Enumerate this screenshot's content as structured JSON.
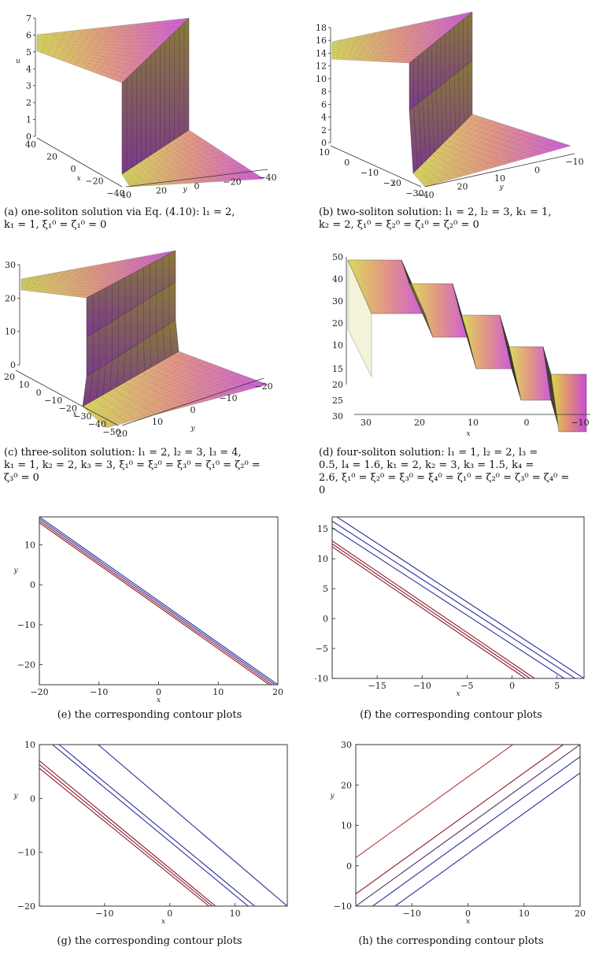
{
  "figure": {
    "panels": [
      {
        "id": "a",
        "caption": "(a) one-soliton solution via Eq. (4.10): l₁ = 2,\nk₁ = 1, ξ₁⁰ = ζ₁⁰ = 0",
        "u_axis": {
          "label": "u",
          "ticks": [
            "7",
            "6",
            "5",
            "4",
            "3",
            "2",
            "1",
            "0"
          ]
        },
        "x_axis": {
          "label": "x",
          "ticks": [
            "40",
            "20",
            "0",
            "−20",
            "−40"
          ]
        },
        "y_axis": {
          "label": "y",
          "ticks": [
            "40",
            "20",
            "0",
            "−20",
            "−40"
          ]
        },
        "steps": 1,
        "u_max": 7
      },
      {
        "id": "b",
        "caption": "(b) two-soliton solution: l₁ = 2, l₂ = 3, k₁ = 1,\nk₂ = 2, ξ₁⁰ = ξ₂⁰ = ζ₁⁰ = ζ₂⁰ = 0",
        "u_axis": {
          "label": "u",
          "ticks": [
            "18",
            "16",
            "14",
            "12",
            "10",
            "8",
            "6",
            "4",
            "2",
            "0"
          ]
        },
        "x_axis": {
          "label": "x",
          "ticks": [
            "10",
            "0",
            "−10",
            "−20",
            "−30"
          ]
        },
        "y_axis": {
          "label": "y",
          "ticks": [
            "−40",
            "20",
            "10",
            "0",
            "−10"
          ]
        },
        "steps": 2,
        "u_max": 18
      },
      {
        "id": "c",
        "caption": "(c) three-soliton solution: l₁ = 2, l₂ = 3, l₃ = 4,\nk₁ = 1, k₂ = 2, k₃ = 3, ξ₁⁰ = ξ₂⁰ = ξ₃⁰ = ζ₁⁰ = ζ₂⁰ =\nζ₃⁰ = 0",
        "u_axis": {
          "label": "",
          "ticks": [
            "30",
            "20",
            "10",
            "0"
          ]
        },
        "x_axis": {
          "label": "x",
          "ticks": [
            "20",
            "10",
            "0",
            "−10",
            "−20",
            "−30",
            "−40",
            "−50"
          ]
        },
        "y_axis": {
          "label": "y",
          "ticks": [
            "20",
            "10",
            "0",
            "−10",
            "−20"
          ]
        },
        "steps": 3,
        "u_max": 33
      },
      {
        "id": "d",
        "caption": "(d) four-soliton solution: l₁ = 1, l₂ = 2, l₃ =\n0.5, l₄ = 1.6, k₁ = 2, k₂ = 3, k₃ = 1.5, k₄ =\n2.6, ξ₁⁰ = ξ₂⁰ = ξ₃⁰ = ξ₄⁰ = ζ₁⁰ = ζ₂⁰ = ζ₃⁰ = ζ₄⁰ =\n0",
        "u_axis": {
          "label": "",
          "ticks": [
            "50",
            "40",
            "30",
            "20",
            "10"
          ]
        },
        "x_axis": {
          "label": "x",
          "ticks": [
            "30",
            "20",
            "10",
            "0",
            "−10"
          ]
        },
        "y_axis": {
          "label": "",
          "ticks": [
            "15",
            "20",
            "25",
            "30"
          ]
        },
        "steps": 4,
        "u_max": 50
      },
      {
        "id": "e",
        "caption": "(e) the corresponding contour plots",
        "x_label": "x",
        "y_label": "y",
        "x_ticks": [
          "−20",
          "−10",
          "0",
          "10",
          "20"
        ],
        "y_ticks": [
          "10",
          "0",
          "−10",
          "−20"
        ]
      },
      {
        "id": "f",
        "caption": "(f) the corresponding contour plots",
        "x_label": "x",
        "y_label": "y",
        "x_ticks": [
          "−15",
          "−10",
          "−5",
          "0",
          "5"
        ],
        "y_ticks": [
          "15",
          "10",
          "5",
          "0",
          "−5",
          "−10"
        ]
      },
      {
        "id": "g",
        "caption": "(g) the corresponding contour plots",
        "x_label": "x",
        "y_label": "y",
        "x_ticks": [
          "−10",
          "0",
          "10"
        ],
        "y_ticks": [
          "10",
          "0",
          "−10",
          "−20"
        ]
      },
      {
        "id": "h",
        "caption": "(h) the corresponding contour plots",
        "x_label": "x",
        "y_label": "y",
        "x_ticks": [
          "−10",
          "0",
          "10",
          "20"
        ],
        "y_ticks": [
          "30",
          "20",
          "10",
          "0",
          "−10"
        ]
      }
    ]
  },
  "chart_data": [
    {
      "type": "line",
      "panel": "e",
      "xlim": [
        -20,
        20
      ],
      "ylim": [
        -25,
        17
      ],
      "series": [
        {
          "color": "#2a2f9a",
          "x": [
            -20,
            20
          ],
          "y": [
            17,
            -25
          ]
        },
        {
          "color": "#2a2f9a",
          "x": [
            -20,
            20
          ],
          "y": [
            16.5,
            -25.5
          ]
        },
        {
          "color": "#8b1a2b",
          "x": [
            -20,
            20
          ],
          "y": [
            16,
            -26
          ]
        },
        {
          "color": "#8b1a2b",
          "x": [
            -20,
            20
          ],
          "y": [
            15.5,
            -26.5
          ]
        }
      ]
    },
    {
      "type": "line",
      "panel": "f",
      "xlim": [
        -20,
        8
      ],
      "ylim": [
        -10,
        17
      ],
      "series": [
        {
          "color": "#2a2f9a",
          "x": [
            -20,
            8
          ],
          "y": [
            17.5,
            -10
          ]
        },
        {
          "color": "#2a2f9a",
          "x": [
            -20,
            7
          ],
          "y": [
            16.3,
            -10
          ]
        },
        {
          "color": "#2a2f9a",
          "x": [
            -20,
            5.8
          ],
          "y": [
            15.2,
            -10
          ]
        },
        {
          "color": "#8b1a2b",
          "x": [
            -20,
            2.5
          ],
          "y": [
            13,
            -10
          ]
        },
        {
          "color": "#8b1a2b",
          "x": [
            -20,
            2
          ],
          "y": [
            12.5,
            -10
          ]
        },
        {
          "color": "#8b1a2b",
          "x": [
            -20,
            1.5
          ],
          "y": [
            12,
            -10
          ]
        }
      ]
    },
    {
      "type": "line",
      "panel": "g",
      "xlim": [
        -20,
        18
      ],
      "ylim": [
        -20,
        10
      ],
      "series": [
        {
          "color": "#2a2f9a",
          "x": [
            -11,
            18
          ],
          "y": [
            10,
            -20
          ]
        },
        {
          "color": "#2a2f9a",
          "x": [
            -17,
            13
          ],
          "y": [
            10,
            -20
          ]
        },
        {
          "color": "#2a2f9a",
          "x": [
            -18,
            12
          ],
          "y": [
            10,
            -20
          ]
        },
        {
          "color": "#8b1a2b",
          "x": [
            -20,
            7
          ],
          "y": [
            7,
            -20
          ]
        },
        {
          "color": "#8b1a2b",
          "x": [
            -20,
            6.5
          ],
          "y": [
            6.3,
            -20
          ]
        },
        {
          "color": "#8b1a2b",
          "x": [
            -20,
            6
          ],
          "y": [
            5.6,
            -20
          ]
        }
      ]
    },
    {
      "type": "line",
      "panel": "h",
      "xlim": [
        -20,
        20
      ],
      "ylim": [
        -10,
        30
      ],
      "series": [
        {
          "color": "#b23a3a",
          "x": [
            -20,
            8
          ],
          "y": [
            2,
            30
          ]
        },
        {
          "color": "#8b1a2b",
          "x": [
            -20,
            17
          ],
          "y": [
            -7,
            30
          ]
        },
        {
          "color": "#5a2a6a",
          "x": [
            -20,
            20
          ],
          "y": [
            -10,
            30
          ]
        },
        {
          "color": "#2a2f9a",
          "x": [
            -17,
            20
          ],
          "y": [
            -10,
            27
          ]
        },
        {
          "color": "#2a2f9a",
          "x": [
            -13,
            20
          ],
          "y": [
            -10,
            23
          ]
        }
      ]
    }
  ]
}
